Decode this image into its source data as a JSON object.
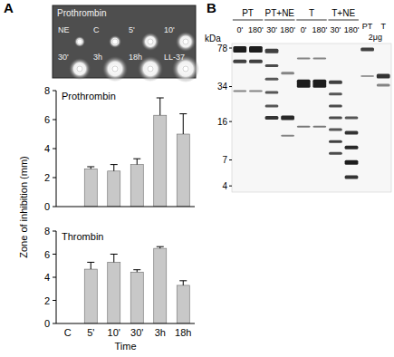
{
  "chart_data": [
    {
      "type": "bar",
      "title": "Prothrombin",
      "categories": [
        "C",
        "5'",
        "10'",
        "30'",
        "3h",
        "18h"
      ],
      "values": [
        0,
        2.6,
        2.45,
        2.9,
        6.3,
        5.0
      ],
      "errors": [
        0,
        0.15,
        0.45,
        0.4,
        1.2,
        1.4
      ],
      "color": "#c8c8c8",
      "ylim": [
        0,
        8
      ],
      "yticks": [
        0,
        2,
        4,
        6,
        8
      ],
      "grid": false,
      "tick_labels": "y"
    },
    {
      "type": "bar",
      "title": "Thrombin",
      "x_label": "Time",
      "categories": [
        "C",
        "5'",
        "10'",
        "30'",
        "3h",
        "18h"
      ],
      "values": [
        0,
        4.7,
        5.3,
        4.45,
        6.5,
        3.3
      ],
      "errors": [
        0,
        0.6,
        0.7,
        0.2,
        0.15,
        0.4
      ],
      "color": "#c8c8c8",
      "ylim": [
        0,
        8
      ],
      "yticks": [
        0,
        2,
        4,
        6,
        8
      ],
      "grid": false
    }
  ],
  "figure": {
    "panel_labels": [
      "A",
      "B"
    ],
    "y_label": "Zone of inhibition (mm)",
    "plate": {
      "title": "Prothrombin",
      "wells": [
        "NE",
        "C",
        "5'",
        "10'",
        "30'",
        "3h",
        "18h",
        "LL-37"
      ]
    },
    "gel": {
      "unit": "kDa",
      "log": true,
      "ylim": [
        3.5,
        86
      ],
      "markers": [
        78,
        34,
        16,
        7,
        4
      ],
      "groups": [
        {
          "label": "PT",
          "lanes": [
            "0'",
            "180'"
          ]
        },
        {
          "label": "PT+NE",
          "lanes": [
            "30'",
            "180'"
          ]
        },
        {
          "label": "T",
          "lanes": [
            "0'",
            "180'"
          ]
        },
        {
          "label": "T+NE",
          "lanes": [
            "30'",
            "180'"
          ]
        },
        {
          "label": "2μg",
          "lanes": [
            "PT",
            "T"
          ]
        }
      ]
    }
  }
}
